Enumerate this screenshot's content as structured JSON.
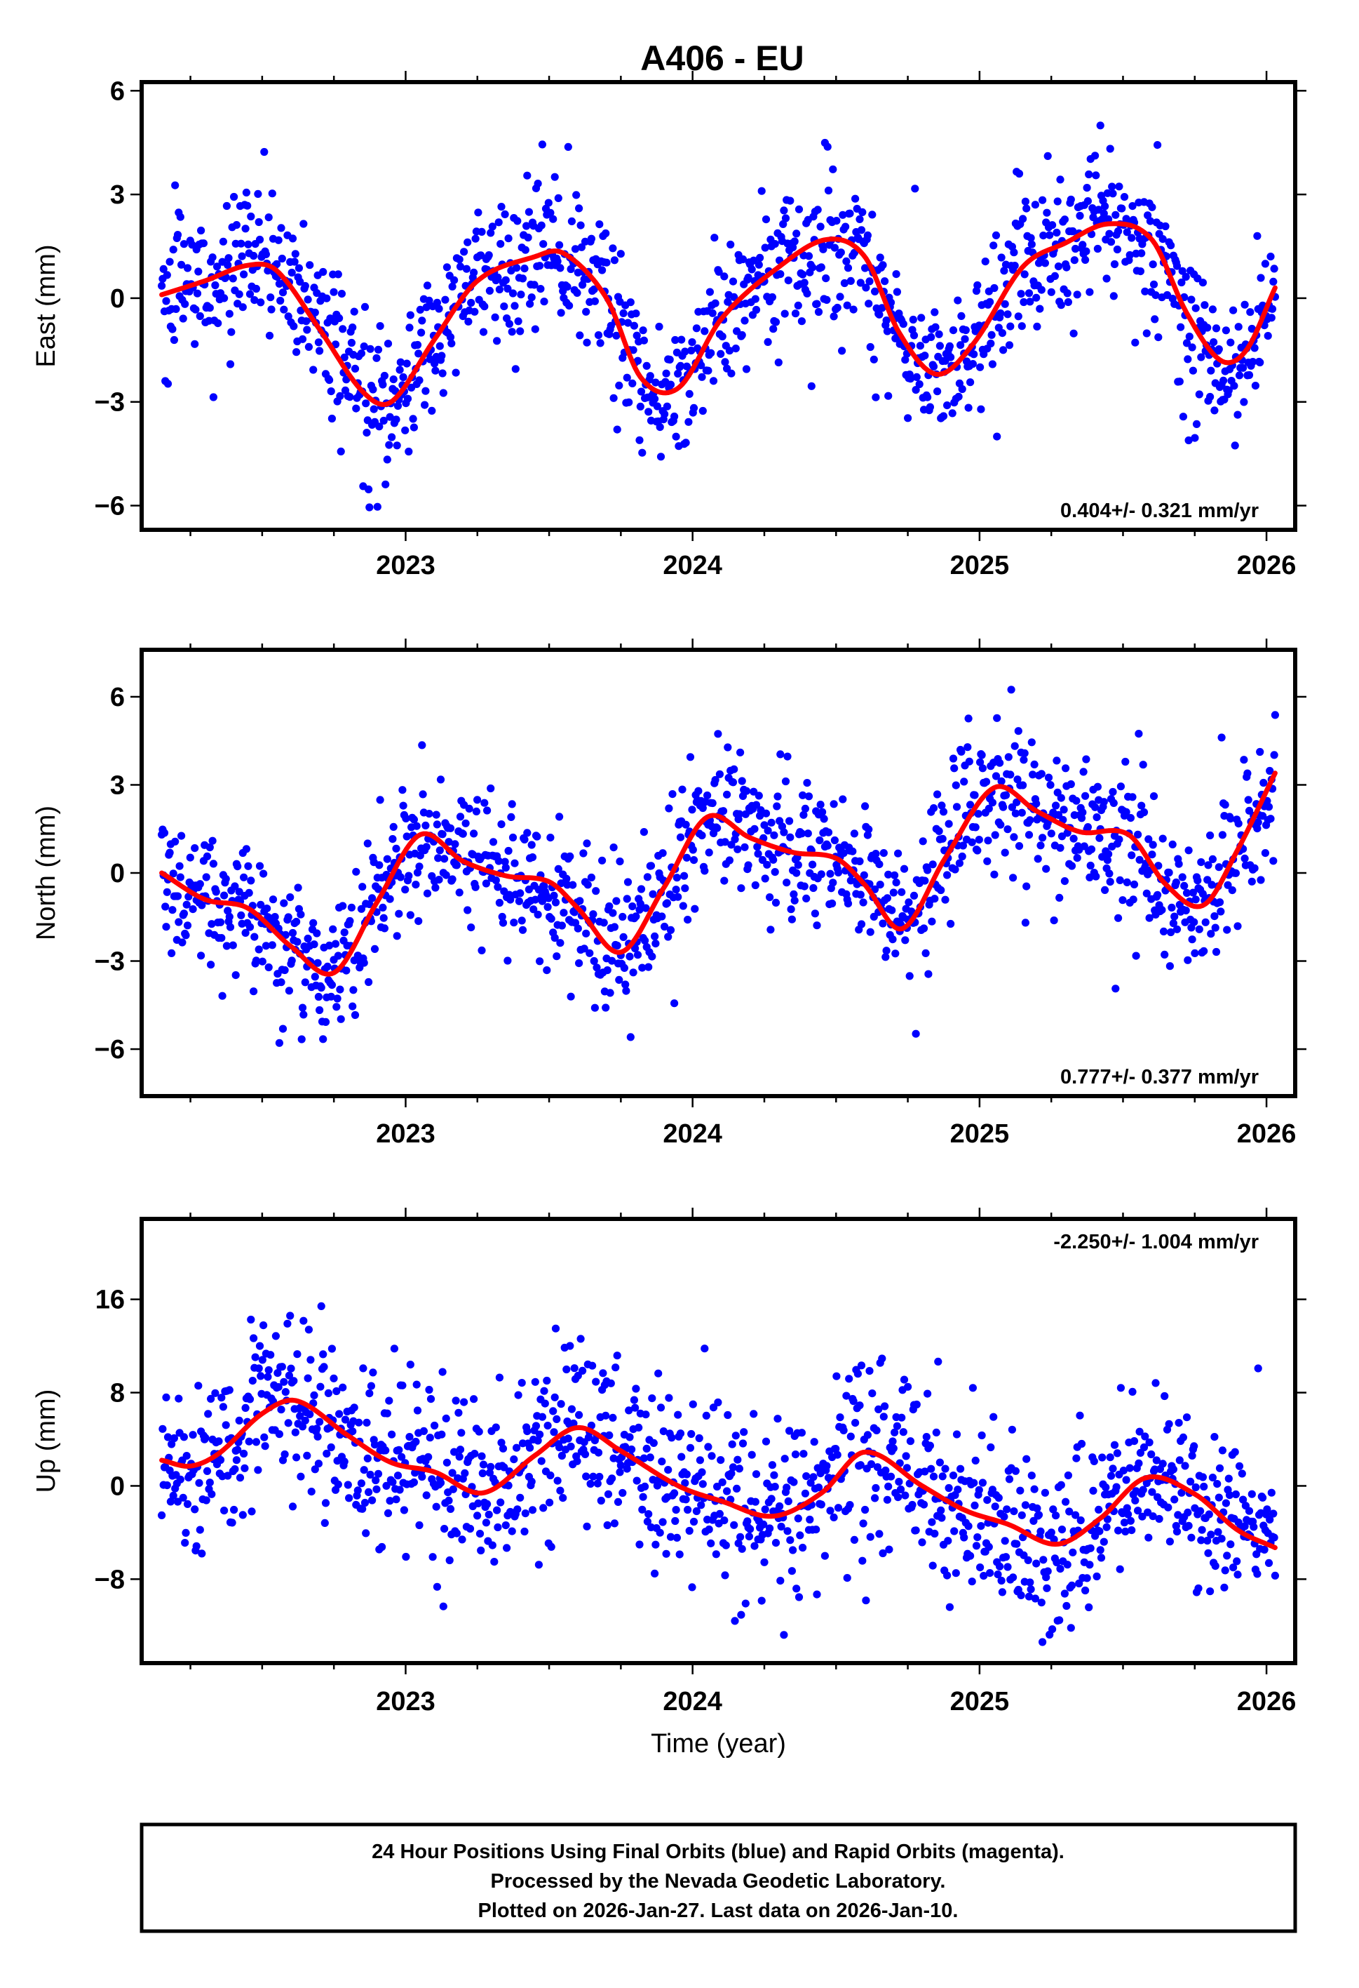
{
  "title": "A406 - EU",
  "footer": {
    "lines": [
      "24 Hour Positions Using Final Orbits (blue) and Rapid Orbits (magenta).",
      "Processed by the Nevada Geodetic Laboratory.",
      "Plotted on 2026-Jan-27. Last data on 2026-Jan-10."
    ]
  },
  "colors": {
    "points": "#0000ff",
    "fit": "#ff0000",
    "axis": "#000000"
  },
  "chart_data": [
    {
      "type": "scatter",
      "name": "east",
      "ylabel": "East (mm)",
      "xlabel": "",
      "rate_label": "0.404+/- 0.321 mm/yr",
      "rate_position": "bottom-right",
      "xlim": [
        2022.08,
        2026.1
      ],
      "ylim": [
        -6.7,
        6.25
      ],
      "x_ticks": [
        2023,
        2024,
        2025,
        2026
      ],
      "x_tick_labels": [
        "2023",
        "2024",
        "2025",
        "2026"
      ],
      "y_ticks": [
        -6,
        -3,
        0,
        3,
        6
      ],
      "y_tick_labels": [
        "−6",
        "−3",
        "0",
        "3",
        "6"
      ],
      "data_start": 2022.15,
      "data_end": 2026.03,
      "noise_sd_mm": 1.05,
      "fit_curve": {
        "x": [
          2022.15,
          2022.3,
          2022.45,
          2022.55,
          2022.7,
          2022.85,
          2022.95,
          2023.1,
          2023.25,
          2023.45,
          2023.55,
          2023.7,
          2023.82,
          2023.95,
          2024.1,
          2024.3,
          2024.47,
          2024.6,
          2024.72,
          2024.85,
          2024.98,
          2025.15,
          2025.3,
          2025.45,
          2025.6,
          2025.72,
          2025.84,
          2025.93,
          2026.03
        ],
        "y": [
          0.1,
          0.5,
          0.95,
          0.8,
          -0.9,
          -2.7,
          -3.0,
          -1.2,
          0.5,
          1.2,
          1.3,
          0.0,
          -2.3,
          -2.6,
          -0.6,
          0.9,
          1.7,
          1.2,
          -1.0,
          -2.2,
          -1.3,
          0.9,
          1.6,
          2.15,
          1.7,
          -0.4,
          -1.8,
          -1.5,
          0.3
        ]
      }
    },
    {
      "type": "scatter",
      "name": "north",
      "ylabel": "North (mm)",
      "xlabel": "",
      "rate_label": "0.777+/- 0.377 mm/yr",
      "rate_position": "bottom-right",
      "xlim": [
        2022.08,
        2026.1
      ],
      "ylim": [
        -7.6,
        7.6
      ],
      "x_ticks": [
        2023,
        2024,
        2025,
        2026
      ],
      "x_tick_labels": [
        "2023",
        "2024",
        "2025",
        "2026"
      ],
      "y_ticks": [
        -6,
        -3,
        0,
        3,
        6
      ],
      "y_tick_labels": [
        "−6",
        "−3",
        "0",
        "3",
        "6"
      ],
      "data_start": 2022.15,
      "data_end": 2026.03,
      "noise_sd_mm": 1.2,
      "fit_curve": {
        "x": [
          2022.15,
          2022.3,
          2022.45,
          2022.6,
          2022.75,
          2022.9,
          2023.05,
          2023.2,
          2023.35,
          2023.5,
          2023.6,
          2023.75,
          2023.9,
          2024.05,
          2024.2,
          2024.35,
          2024.5,
          2024.6,
          2024.73,
          2024.88,
          2025.05,
          2025.2,
          2025.35,
          2025.52,
          2025.65,
          2025.78,
          2025.9,
          2026.03
        ],
        "y": [
          0.0,
          -0.9,
          -1.2,
          -2.5,
          -3.4,
          -1.0,
          1.3,
          0.4,
          -0.1,
          -0.3,
          -1.2,
          -2.7,
          -0.5,
          1.9,
          1.2,
          0.7,
          0.5,
          -0.4,
          -1.9,
          0.5,
          2.9,
          2.1,
          1.4,
          1.3,
          -0.4,
          -1.1,
          0.8,
          3.4
        ]
      }
    },
    {
      "type": "scatter",
      "name": "up",
      "ylabel": "Up (mm)",
      "xlabel": "Time (year)",
      "rate_label": "-2.250+/- 1.004 mm/yr",
      "rate_position": "top-right",
      "xlim": [
        2022.08,
        2026.1
      ],
      "ylim": [
        -15.2,
        22.9
      ],
      "x_ticks": [
        2023,
        2024,
        2025,
        2026
      ],
      "x_tick_labels": [
        "2023",
        "2024",
        "2025",
        "2026"
      ],
      "y_ticks": [
        -8,
        0,
        8,
        16
      ],
      "y_tick_labels": [
        "−8",
        "0",
        "8",
        "16"
      ],
      "data_start": 2022.15,
      "data_end": 2026.03,
      "noise_sd_mm": 3.8,
      "fit_curve": {
        "x": [
          2022.15,
          2022.25,
          2022.35,
          2022.5,
          2022.62,
          2022.8,
          2022.95,
          2023.1,
          2023.27,
          2023.45,
          2023.6,
          2023.75,
          2023.95,
          2024.1,
          2024.28,
          2024.45,
          2024.6,
          2024.8,
          2024.95,
          2025.1,
          2025.27,
          2025.42,
          2025.58,
          2025.75,
          2025.9,
          2026.03
        ],
        "y": [
          2.2,
          1.7,
          2.8,
          6.2,
          7.3,
          4.3,
          2.0,
          1.2,
          -0.6,
          2.6,
          5.0,
          3.0,
          0.0,
          -1.3,
          -2.6,
          -0.6,
          2.9,
          0.0,
          -2.1,
          -3.3,
          -5.0,
          -2.8,
          0.7,
          -0.7,
          -3.8,
          -5.3
        ]
      }
    }
  ]
}
